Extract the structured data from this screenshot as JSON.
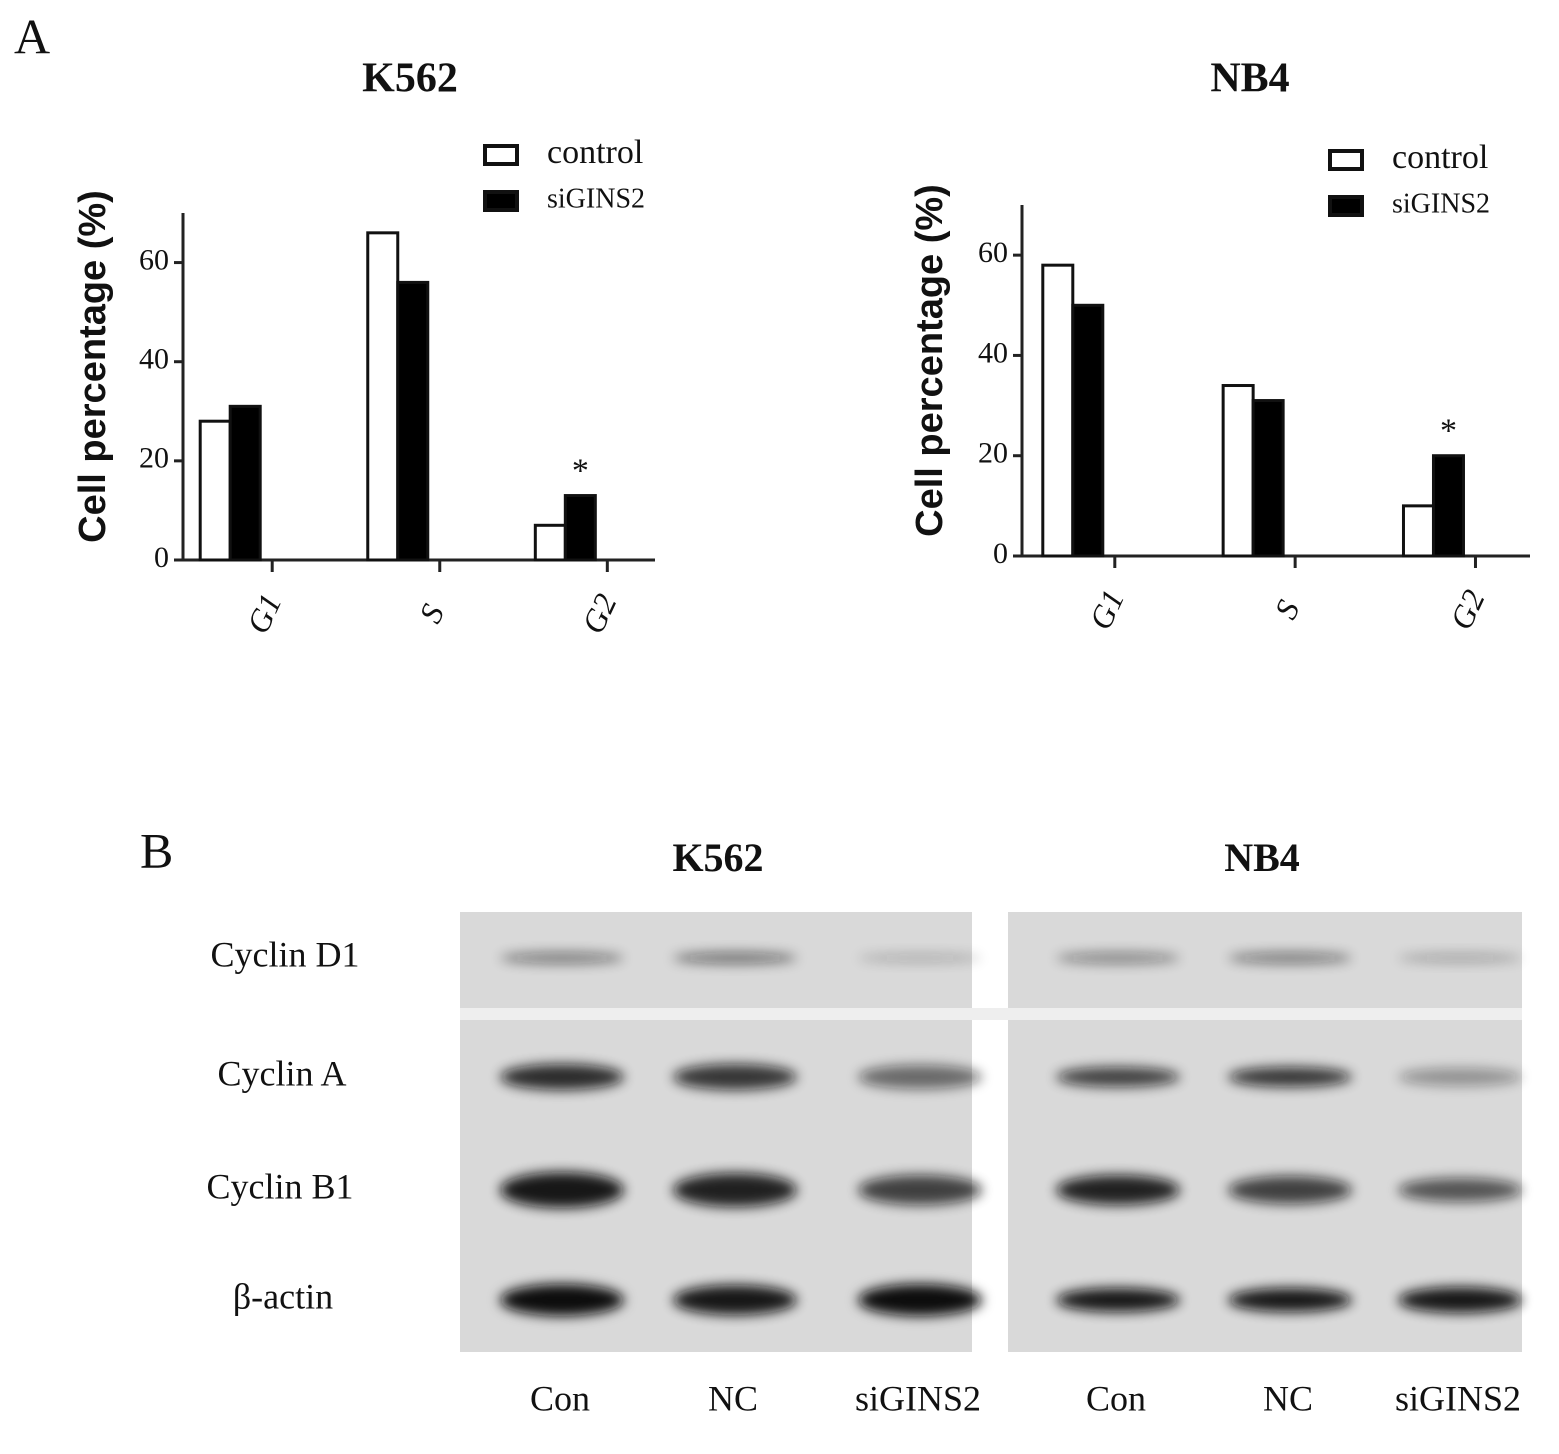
{
  "panel_labels": [
    "A",
    "B"
  ],
  "chart_data": [
    {
      "type": "bar",
      "title": "K562",
      "y_label": "Cell percentage (%)",
      "categories": [
        "G1",
        "S",
        "G2"
      ],
      "series": [
        {
          "name": "control",
          "color": "#ffffff",
          "values": [
            28,
            66,
            7
          ]
        },
        {
          "name": "siGINS2",
          "color": "#000000",
          "values": [
            31,
            56,
            13
          ],
          "annotations": [
            null,
            null,
            "*"
          ]
        }
      ],
      "ylim": [
        0,
        70
      ],
      "yticks": [
        0,
        20,
        40,
        60
      ]
    },
    {
      "type": "bar",
      "title": "NB4",
      "y_label": "Cell percentage (%)",
      "categories": [
        "G1",
        "S",
        "G2"
      ],
      "series": [
        {
          "name": "control",
          "color": "#ffffff",
          "values": [
            58,
            34,
            10
          ]
        },
        {
          "name": "siGINS2",
          "color": "#000000",
          "values": [
            50,
            31,
            20
          ],
          "annotations": [
            null,
            null,
            "*"
          ]
        }
      ],
      "ylim": [
        0,
        70
      ],
      "yticks": [
        0,
        20,
        40,
        60
      ]
    }
  ],
  "blot": {
    "titles": [
      "K562",
      "NB4"
    ],
    "rows": [
      "Cyclin D1",
      "Cyclin A",
      "Cyclin B1",
      "β-actin"
    ],
    "lanes": [
      "Con",
      "NC",
      "siGINS2",
      "Con",
      "NC",
      "siGINS2"
    ]
  }
}
